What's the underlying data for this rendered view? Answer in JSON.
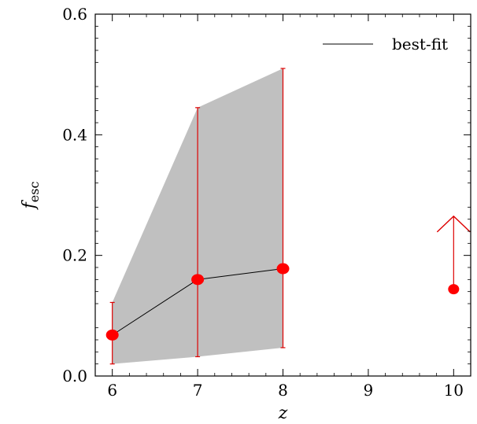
{
  "chart_data": {
    "type": "line",
    "xlabel": "z",
    "ylabel": "f",
    "ylabel_sub": "esc",
    "xlim": [
      5.8,
      10.2
    ],
    "ylim": [
      0.0,
      0.6
    ],
    "xticks": [
      6,
      7,
      8,
      9,
      10
    ],
    "xtick_labels": [
      "6",
      "7",
      "8",
      "9",
      "10"
    ],
    "yticks": [
      0.0,
      0.2,
      0.4,
      0.6
    ],
    "ytick_labels": [
      "0.0",
      "0.2",
      "0.4",
      "0.6"
    ],
    "grid": false,
    "legend": {
      "position": "top-right",
      "entries": [
        "best-fit"
      ]
    },
    "colors": {
      "points": "#ff0000",
      "errorbars": "#dd0000",
      "band": "#c0c0c0",
      "line": "#000000"
    },
    "series": [
      {
        "name": "best-fit",
        "type": "line",
        "x": [
          6,
          7,
          8
        ],
        "y": [
          0.068,
          0.16,
          0.178
        ]
      }
    ],
    "points": [
      {
        "x": 6,
        "y": 0.068,
        "lo": 0.02,
        "hi": 0.122
      },
      {
        "x": 7,
        "y": 0.16,
        "lo": 0.032,
        "hi": 0.445
      },
      {
        "x": 8,
        "y": 0.178,
        "lo": 0.047,
        "hi": 0.51
      }
    ],
    "lower_limit": {
      "x": 10,
      "y": 0.144,
      "arrow_to": 0.265
    },
    "band": {
      "x": [
        6,
        7,
        8
      ],
      "lower": [
        0.02,
        0.032,
        0.047
      ],
      "upper": [
        0.122,
        0.445,
        0.51
      ]
    }
  }
}
